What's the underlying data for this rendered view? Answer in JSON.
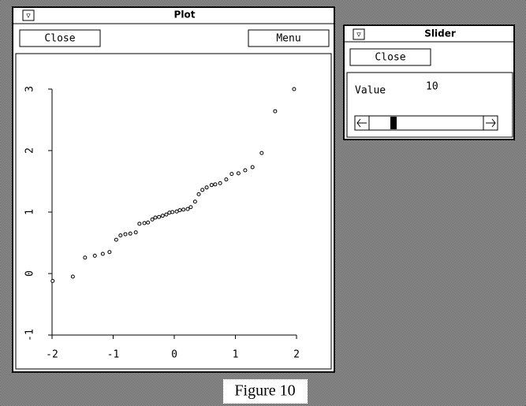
{
  "plot_window": {
    "title": "Plot",
    "close_button": "Close",
    "menu_button": "Menu",
    "chart": {
      "type": "scatter",
      "x": [
        -1.99,
        -1.66,
        -1.46,
        -1.3,
        -1.17,
        -1.06,
        -0.95,
        -0.88,
        -0.8,
        -0.72,
        -0.63,
        -0.57,
        -0.49,
        -0.43,
        -0.36,
        -0.31,
        -0.25,
        -0.19,
        -0.13,
        -0.08,
        -0.03,
        0.04,
        0.09,
        0.15,
        0.22,
        0.27,
        0.34,
        0.4,
        0.46,
        0.53,
        0.61,
        0.67,
        0.75,
        0.85,
        0.94,
        1.05,
        1.16,
        1.28,
        1.43,
        1.65,
        1.96
      ],
      "y": [
        -0.12,
        -0.05,
        0.26,
        0.29,
        0.32,
        0.35,
        0.55,
        0.62,
        0.64,
        0.65,
        0.67,
        0.81,
        0.82,
        0.83,
        0.88,
        0.91,
        0.92,
        0.94,
        0.96,
        0.99,
        1.0,
        1.01,
        1.03,
        1.04,
        1.05,
        1.08,
        1.17,
        1.29,
        1.36,
        1.4,
        1.44,
        1.45,
        1.47,
        1.53,
        1.62,
        1.63,
        1.68,
        1.73,
        1.96,
        2.64,
        3.0
      ],
      "xlim": [
        -2,
        2
      ],
      "ylim": [
        -1,
        3
      ],
      "xticks": [
        -2,
        -1,
        0,
        1,
        2
      ],
      "yticks": [
        -1,
        0,
        1,
        2,
        3
      ],
      "color": "#000000"
    }
  },
  "slider_window": {
    "title": "Slider",
    "close_button": "Close",
    "label": "Value",
    "value": "10"
  },
  "caption": "Figure 10"
}
